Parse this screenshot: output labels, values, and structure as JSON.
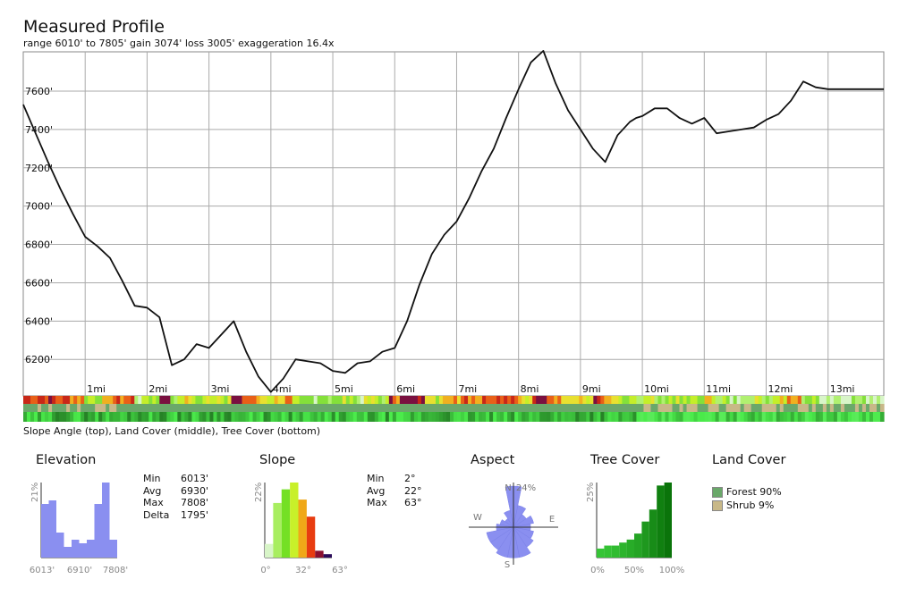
{
  "header": {
    "title": "Measured Profile",
    "subtitle": "range 6010' to 7805'  gain 3074'  loss 3005'  exaggeration 16.4x"
  },
  "chart_data": [
    {
      "type": "line",
      "ylim": [
        6010,
        7805
      ],
      "xlim": [
        0,
        13.9
      ],
      "y_ticks": [
        "6200'",
        "6400'",
        "6600'",
        "6800'",
        "7000'",
        "7200'",
        "7400'",
        "7600'"
      ],
      "y_tick_values": [
        6200,
        6400,
        6600,
        6800,
        7000,
        7200,
        7400,
        7600
      ],
      "x_ticks": [
        "1mi",
        "2mi",
        "3mi",
        "4mi",
        "5mi",
        "6mi",
        "7mi",
        "8mi",
        "9mi",
        "10mi",
        "11mi",
        "12mi",
        "13mi"
      ],
      "x_tick_values": [
        1,
        2,
        3,
        4,
        5,
        6,
        7,
        8,
        9,
        10,
        11,
        12,
        13
      ],
      "grid": true,
      "x": [
        0,
        0.2,
        0.4,
        0.6,
        0.8,
        1.0,
        1.2,
        1.4,
        1.6,
        1.8,
        2.0,
        2.2,
        2.4,
        2.6,
        2.8,
        3.0,
        3.2,
        3.4,
        3.6,
        3.8,
        4.0,
        4.2,
        4.4,
        4.6,
        4.8,
        5.0,
        5.2,
        5.4,
        5.6,
        5.8,
        6.0,
        6.2,
        6.4,
        6.6,
        6.8,
        7.0,
        7.2,
        7.4,
        7.6,
        7.8,
        8.0,
        8.2,
        8.4,
        8.6,
        8.8,
        9.0,
        9.2,
        9.4,
        9.6,
        9.8,
        9.9,
        10.0,
        10.2,
        10.4,
        10.6,
        10.8,
        11.0,
        11.2,
        11.4,
        11.6,
        11.8,
        12.0,
        12.2,
        12.4,
        12.6,
        12.8,
        13.0,
        13.2,
        13.4,
        13.6,
        13.8,
        13.9
      ],
      "y": [
        7530,
        7380,
        7230,
        7090,
        6960,
        6840,
        6790,
        6730,
        6610,
        6480,
        6470,
        6420,
        6170,
        6200,
        6280,
        6260,
        6330,
        6400,
        6240,
        6110,
        6030,
        6100,
        6200,
        6190,
        6180,
        6140,
        6130,
        6180,
        6190,
        6240,
        6260,
        6400,
        6590,
        6750,
        6850,
        6920,
        7040,
        7180,
        7300,
        7460,
        7610,
        7750,
        7810,
        7640,
        7500,
        7400,
        7300,
        7230,
        7370,
        7440,
        7460,
        7470,
        7510,
        7510,
        7460,
        7430,
        7460,
        7380,
        7390,
        7400,
        7410,
        7450,
        7480,
        7550,
        7650,
        7620,
        7610,
        7610,
        7610,
        7610,
        7610,
        7610
      ],
      "note_y_unit": "feet"
    },
    {
      "type": "bar",
      "title": "Elevation",
      "values": [
        15,
        16,
        7,
        3,
        5,
        4,
        5,
        15,
        21,
        5
      ],
      "ymax_label": "21%",
      "x_tick_labels": [
        "6013'",
        "6910'",
        "7808'"
      ],
      "color": "#8a8ff0"
    },
    {
      "type": "bar",
      "title": "Slope",
      "values": [
        4,
        16,
        20,
        22,
        17,
        12,
        2,
        1
      ],
      "colors": [
        "#d8f5c8",
        "#a8ee60",
        "#74e024",
        "#c8f02a",
        "#f0a818",
        "#e83c10",
        "#8a1030",
        "#2a0a5a"
      ],
      "ymax_label": "22%",
      "x_tick_labels": [
        "0°",
        "32°",
        "63°"
      ]
    },
    {
      "type": "bar",
      "title": "Tree Cover",
      "values": [
        3,
        4,
        4,
        5,
        6,
        8,
        12,
        16,
        24,
        25
      ],
      "colors": [
        "#36c436",
        "#34c234",
        "#30bc30",
        "#2cb42c",
        "#28ac28",
        "#24a424",
        "#1e981e",
        "#188c18",
        "#108010",
        "#0a740a"
      ],
      "ymax_label": "25%",
      "x_tick_labels": [
        "0%",
        "50%",
        "100%"
      ]
    },
    {
      "type": "pie",
      "title": "Aspect",
      "directions": [
        "N",
        "NNE",
        "NE",
        "ENE",
        "E",
        "ESE",
        "SE",
        "SSE",
        "S",
        "SSW",
        "SW",
        "WSW",
        "W",
        "WNW",
        "NW",
        "NNW"
      ],
      "values": [
        24,
        13,
        9,
        12,
        10,
        12,
        14,
        18,
        18,
        18,
        16,
        16,
        10,
        8,
        6,
        10
      ],
      "max_label": "24%",
      "compass": [
        "N",
        "E",
        "S",
        "W"
      ]
    }
  ],
  "strips": {
    "caption": "Slope Angle (top), Land Cover (middle), Tree Cover (bottom)"
  },
  "panels": {
    "elevation": {
      "title": "Elevation",
      "stats": [
        {
          "label": "Min",
          "value": "6013'"
        },
        {
          "label": "Avg",
          "value": "6930'"
        },
        {
          "label": "Max",
          "value": "7808'"
        },
        {
          "label": "Delta",
          "value": "1795'"
        }
      ]
    },
    "slope": {
      "title": "Slope",
      "stats": [
        {
          "label": "Min",
          "value": "2°"
        },
        {
          "label": "Avg",
          "value": "22°"
        },
        {
          "label": "Max",
          "value": "63°"
        }
      ]
    },
    "aspect": {
      "title": "Aspect"
    },
    "tree_cover": {
      "title": "Tree Cover"
    },
    "land_cover": {
      "title": "Land Cover",
      "items": [
        {
          "label": "Forest 90%",
          "color": "#6aa86a"
        },
        {
          "label": "Shrub 9%",
          "color": "#c8b888"
        }
      ]
    }
  },
  "colors": {
    "grid": "#aaaaaa",
    "line": "#111111",
    "elevation_bars": "#8a8ff0",
    "aspect_fill": "#8a8ff0"
  }
}
